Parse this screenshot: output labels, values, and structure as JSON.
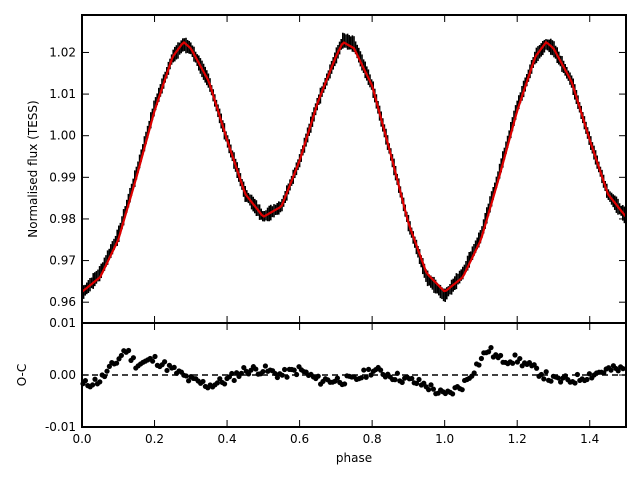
{
  "chart_data": [
    {
      "panel": "top",
      "type": "scatter",
      "ylabel": "Normalised flux (TESS)",
      "xlim": [
        0.0,
        1.5
      ],
      "ylim": [
        0.955,
        1.029
      ],
      "yticks": [
        "0.96",
        "0.97",
        "0.98",
        "0.99",
        "1.00",
        "1.01",
        "1.02"
      ],
      "ytick_values": [
        0.96,
        0.97,
        0.98,
        0.99,
        1.0,
        1.01,
        1.02
      ],
      "series": [
        {
          "kind": "observations",
          "color": "#000000",
          "x": [
            0.0,
            0.05,
            0.1,
            0.15,
            0.2,
            0.25,
            0.28,
            0.3,
            0.35,
            0.4,
            0.45,
            0.5,
            0.55,
            0.6,
            0.65,
            0.7,
            0.72,
            0.75,
            0.8,
            0.85,
            0.9,
            0.95,
            1.0,
            1.05,
            1.1,
            1.15,
            1.2,
            1.25,
            1.28,
            1.3,
            1.35,
            1.4,
            1.45,
            1.5
          ],
          "y": [
            0.962,
            0.967,
            0.976,
            0.991,
            1.007,
            1.019,
            1.022,
            1.021,
            1.013,
            0.999,
            0.986,
            0.9805,
            0.983,
            0.994,
            1.008,
            1.019,
            1.023,
            1.022,
            1.012,
            0.996,
            0.979,
            0.966,
            0.9615,
            0.967,
            0.976,
            0.991,
            1.007,
            1.019,
            1.022,
            1.021,
            1.013,
            0.999,
            0.986,
            0.9805
          ]
        },
        {
          "kind": "model",
          "color": "#dd0000",
          "x": [
            0.0,
            0.05,
            0.1,
            0.15,
            0.2,
            0.25,
            0.28,
            0.3,
            0.35,
            0.4,
            0.45,
            0.5,
            0.55,
            0.6,
            0.65,
            0.7,
            0.72,
            0.75,
            0.8,
            0.85,
            0.9,
            0.95,
            1.0,
            1.05,
            1.1,
            1.15,
            1.2,
            1.25,
            1.28,
            1.3,
            1.35,
            1.4,
            1.45,
            1.5
          ],
          "y": [
            0.9625,
            0.966,
            0.975,
            0.99,
            1.006,
            1.019,
            1.0225,
            1.021,
            1.013,
            0.999,
            0.986,
            0.9805,
            0.983,
            0.994,
            1.008,
            1.019,
            1.0225,
            1.021,
            1.012,
            0.996,
            0.979,
            0.967,
            0.9625,
            0.966,
            0.975,
            0.99,
            1.006,
            1.019,
            1.0225,
            1.021,
            1.013,
            0.999,
            0.986,
            0.9805
          ]
        }
      ]
    },
    {
      "panel": "bottom",
      "type": "scatter",
      "xlabel": "phase",
      "ylabel": "O-C",
      "xlim": [
        0.0,
        1.5
      ],
      "ylim": [
        -0.01,
        0.01
      ],
      "xticks": [
        "0.0",
        "0.2",
        "0.4",
        "0.6",
        "0.8",
        "1.0",
        "1.2",
        "1.4"
      ],
      "xtick_values": [
        0.0,
        0.2,
        0.4,
        0.6,
        0.8,
        1.0,
        1.2,
        1.4
      ],
      "yticks": [
        "-0.01",
        "0.00",
        "0.01"
      ],
      "ytick_values": [
        -0.01,
        0.0,
        0.01
      ],
      "reference_line": {
        "y": 0.0,
        "style": "dashed"
      },
      "series": [
        {
          "kind": "residuals",
          "color": "#000000",
          "x": [
            0.0,
            0.05,
            0.1,
            0.12,
            0.15,
            0.2,
            0.25,
            0.3,
            0.35,
            0.4,
            0.45,
            0.5,
            0.55,
            0.6,
            0.65,
            0.7,
            0.75,
            0.8,
            0.85,
            0.9,
            0.95,
            1.0,
            1.05,
            1.1,
            1.12,
            1.15,
            1.2,
            1.25,
            1.3,
            1.35,
            1.4,
            1.45,
            1.5
          ],
          "y": [
            -0.002,
            -0.001,
            0.003,
            0.005,
            0.002,
            0.003,
            0.001,
            -0.001,
            -0.002,
            -0.001,
            0.001,
            0.001,
            0.0,
            0.001,
            -0.001,
            -0.001,
            -0.001,
            0.001,
            0.0,
            -0.001,
            -0.002,
            -0.004,
            -0.002,
            0.003,
            0.005,
            0.003,
            0.003,
            0.001,
            -0.001,
            -0.001,
            0.0,
            0.001,
            0.001
          ]
        }
      ]
    }
  ]
}
